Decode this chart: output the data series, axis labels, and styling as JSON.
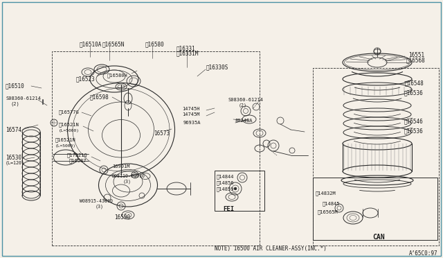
{
  "bg_color": "#f5f0e8",
  "line_color": "#2a2a2a",
  "text_color": "#1a1a1a",
  "note_text": "NOTE) 16500 AIR CLEANER-ASSY(INC.*)",
  "drawing_number": "A’65C0:97",
  "fed_label": "FEI",
  "can_label": "CAN",
  "border_color": "#4a90a4",
  "fig_width": 6.4,
  "fig_height": 3.72,
  "dpi": 100
}
